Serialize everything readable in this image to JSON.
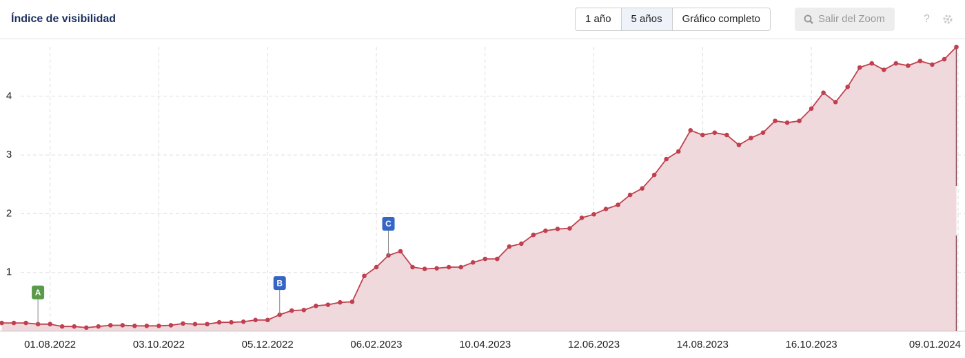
{
  "header": {
    "title": "Índice de visibilidad",
    "range_buttons": [
      {
        "label": "1 año",
        "active": false
      },
      {
        "label": "5 años",
        "active": true
      },
      {
        "label": "Gráfico completo",
        "active": false
      }
    ],
    "zoom_button": "Salir del Zoom",
    "help": "?"
  },
  "chart_data": {
    "type": "area",
    "color": "#c0404f",
    "fill": "#f0d9dc",
    "x": [
      "2022-07-04",
      "2022-07-11",
      "2022-07-18",
      "2022-07-25",
      "2022-08-01",
      "2022-08-08",
      "2022-08-15",
      "2022-08-22",
      "2022-08-29",
      "2022-09-05",
      "2022-09-12",
      "2022-09-19",
      "2022-09-26",
      "2022-10-03",
      "2022-10-10",
      "2022-10-17",
      "2022-10-24",
      "2022-10-31",
      "2022-11-07",
      "2022-11-14",
      "2022-11-21",
      "2022-11-28",
      "2022-12-05",
      "2022-12-12",
      "2022-12-19",
      "2022-12-26",
      "2023-01-02",
      "2023-01-09",
      "2023-01-16",
      "2023-01-23",
      "2023-01-30",
      "2023-02-06",
      "2023-02-13",
      "2023-02-20",
      "2023-02-27",
      "2023-03-06",
      "2023-03-13",
      "2023-03-20",
      "2023-03-27",
      "2023-04-03",
      "2023-04-10",
      "2023-04-17",
      "2023-04-24",
      "2023-05-01",
      "2023-05-08",
      "2023-05-15",
      "2023-05-22",
      "2023-05-29",
      "2023-06-05",
      "2023-06-12",
      "2023-06-19",
      "2023-06-26",
      "2023-07-03",
      "2023-07-10",
      "2023-07-17",
      "2023-07-24",
      "2023-07-31",
      "2023-08-07",
      "2023-08-14",
      "2023-08-21",
      "2023-08-28",
      "2023-09-04",
      "2023-09-11",
      "2023-09-18",
      "2023-09-25",
      "2023-10-02",
      "2023-10-09",
      "2023-10-16",
      "2023-10-23",
      "2023-10-30",
      "2023-11-06",
      "2023-11-13",
      "2023-11-20",
      "2023-11-27",
      "2023-12-04",
      "2023-12-11",
      "2023-12-18",
      "2023-12-25",
      "2024-01-01",
      "2024-01-08"
    ],
    "values": [
      0.14,
      0.14,
      0.14,
      0.12,
      0.12,
      0.08,
      0.08,
      0.06,
      0.08,
      0.1,
      0.1,
      0.09,
      0.09,
      0.09,
      0.1,
      0.13,
      0.12,
      0.12,
      0.15,
      0.15,
      0.16,
      0.19,
      0.19,
      0.28,
      0.35,
      0.36,
      0.43,
      0.45,
      0.49,
      0.5,
      0.94,
      1.09,
      1.29,
      1.36,
      1.09,
      1.06,
      1.07,
      1.09,
      1.09,
      1.17,
      1.23,
      1.23,
      1.44,
      1.49,
      1.64,
      1.71,
      1.74,
      1.75,
      1.93,
      1.99,
      2.08,
      2.15,
      2.32,
      2.43,
      2.66,
      2.93,
      3.06,
      3.42,
      3.34,
      3.38,
      3.34,
      3.17,
      3.29,
      3.38,
      3.58,
      3.55,
      3.58,
      3.79,
      4.06,
      3.9,
      4.16,
      4.49,
      4.56,
      4.45,
      4.56,
      4.52,
      4.6,
      4.54,
      4.63,
      4.84
    ],
    "xlim": [
      "2022-07-03",
      "2024-01-13"
    ],
    "xticks": [
      {
        "value": "2022-08-01",
        "label": "01.08.2022"
      },
      {
        "value": "2022-10-03",
        "label": "03.10.2022"
      },
      {
        "value": "2022-12-05",
        "label": "05.12.2022"
      },
      {
        "value": "2023-02-06",
        "label": "06.02.2023"
      },
      {
        "value": "2023-04-10",
        "label": "10.04.2023"
      },
      {
        "value": "2023-06-12",
        "label": "12.06.2023"
      },
      {
        "value": "2023-08-14",
        "label": "14.08.2023"
      },
      {
        "value": "2023-10-16",
        "label": "16.10.2023"
      },
      {
        "value": "2024-01-09",
        "label": "09.01.2024"
      }
    ],
    "ylim": [
      0,
      5
    ],
    "yticks": [
      1,
      2,
      3,
      4
    ],
    "grid": true,
    "annotations": [
      {
        "label": "A",
        "x": "2022-07-25",
        "color": "#5a9a48"
      },
      {
        "label": "B",
        "x": "2022-12-12",
        "color": "#3566c6"
      },
      {
        "label": "C",
        "x": "2023-02-13",
        "color": "#3566c6"
      }
    ]
  }
}
